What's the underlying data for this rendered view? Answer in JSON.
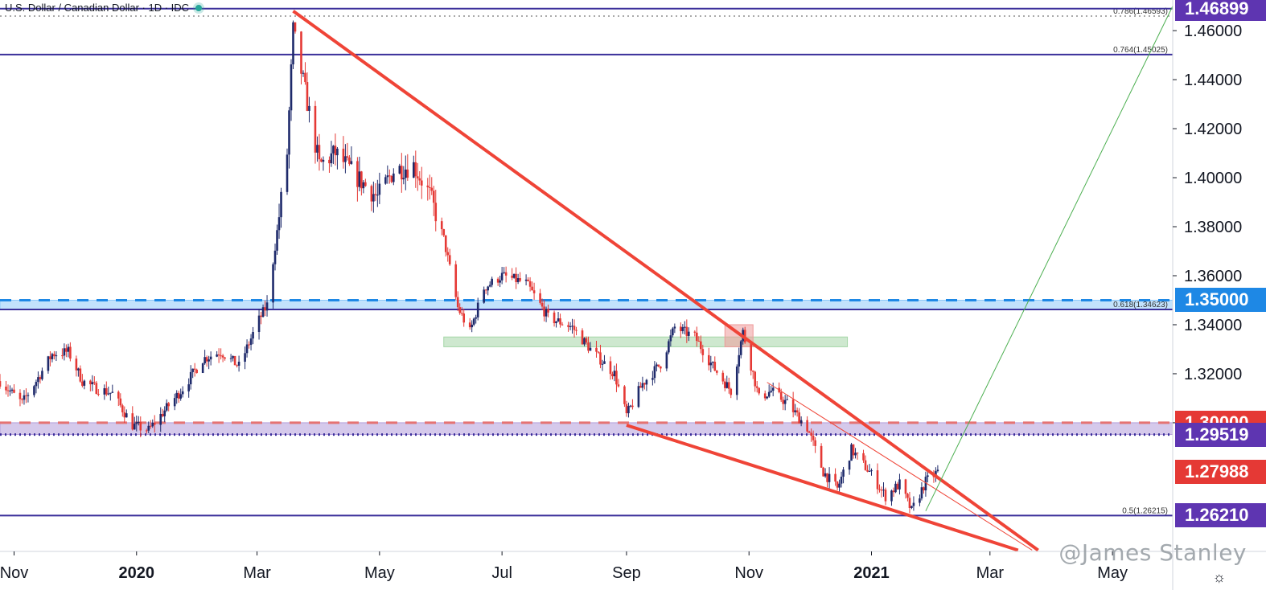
{
  "header": {
    "symbol_label": "U.S. Dollar / Canadian Dollar · 1D · IDC",
    "status_icon": "live-status-dot"
  },
  "watermark": "@James Stanley",
  "settings_icon": "gear-icon",
  "colors": {
    "up": "#1e2a6b",
    "down": "#e53935",
    "trendline": "#ef4437",
    "fib_line": "#3a2f9a",
    "zone_blue": "#90caf9",
    "zone_purple": "#b39ddb",
    "zone_green": "#a5d6a7",
    "projection": "#4caf50"
  },
  "price_tags": [
    {
      "label": "1.46899",
      "value": 1.46899,
      "color": "#5e35b1"
    },
    {
      "label": "1.35000",
      "value": 1.35,
      "color": "#1e88e5"
    },
    {
      "label": "1.30000",
      "value": 1.3,
      "color": "#e53935"
    },
    {
      "label": "1.29519",
      "value": 1.29519,
      "color": "#5e35b1"
    },
    {
      "label": "1.27988",
      "value": 1.27988,
      "color": "#e53935"
    },
    {
      "label": "1.26210",
      "value": 1.2621,
      "color": "#5e35b1"
    }
  ],
  "chart_data": {
    "type": "candlestick",
    "title": "U.S. Dollar / Canadian Dollar · 1D · IDC",
    "ylim": [
      1.2475,
      1.4725
    ],
    "y_ticks": [
      "1.46000",
      "1.44000",
      "1.42000",
      "1.40000",
      "1.38000",
      "1.36000",
      "1.34000",
      "1.32000",
      "1.30000"
    ],
    "x_range": [
      "2019-10-25",
      "2021-05-31"
    ],
    "x_ticks": [
      {
        "label": "Nov",
        "date": "2019-11-01",
        "bold": false
      },
      {
        "label": "2020",
        "date": "2020-01-01",
        "bold": true
      },
      {
        "label": "Mar",
        "date": "2020-03-01",
        "bold": false
      },
      {
        "label": "May",
        "date": "2020-05-01",
        "bold": false
      },
      {
        "label": "Jul",
        "date": "2020-07-01",
        "bold": false
      },
      {
        "label": "Sep",
        "date": "2020-09-01",
        "bold": false
      },
      {
        "label": "Nov",
        "date": "2020-11-01",
        "bold": false
      },
      {
        "label": "2021",
        "date": "2021-01-01",
        "bold": true
      },
      {
        "label": "Mar",
        "date": "2021-03-01",
        "bold": false
      },
      {
        "label": "May",
        "date": "2021-05-01",
        "bold": false
      }
    ],
    "series_closes": [
      {
        "date": "2019-10-25",
        "close": 1.317
      },
      {
        "date": "2019-11-05",
        "close": 1.308
      },
      {
        "date": "2019-11-12",
        "close": 1.317
      },
      {
        "date": "2019-11-20",
        "close": 1.328
      },
      {
        "date": "2019-11-28",
        "close": 1.329
      },
      {
        "date": "2019-12-05",
        "close": 1.317
      },
      {
        "date": "2019-12-12",
        "close": 1.314
      },
      {
        "date": "2019-12-20",
        "close": 1.312
      },
      {
        "date": "2019-12-30",
        "close": 1.299
      },
      {
        "date": "2020-01-07",
        "close": 1.297
      },
      {
        "date": "2020-01-15",
        "close": 1.305
      },
      {
        "date": "2020-01-24",
        "close": 1.314
      },
      {
        "date": "2020-02-03",
        "close": 1.326
      },
      {
        "date": "2020-02-12",
        "close": 1.329
      },
      {
        "date": "2020-02-21",
        "close": 1.323
      },
      {
        "date": "2020-03-02",
        "close": 1.342
      },
      {
        "date": "2020-03-06",
        "close": 1.348
      },
      {
        "date": "2020-03-11",
        "close": 1.378
      },
      {
        "date": "2020-03-16",
        "close": 1.41
      },
      {
        "date": "2020-03-19",
        "close": 1.46
      },
      {
        "date": "2020-03-25",
        "close": 1.435
      },
      {
        "date": "2020-04-01",
        "close": 1.405
      },
      {
        "date": "2020-04-09",
        "close": 1.41
      },
      {
        "date": "2020-04-20",
        "close": 1.4
      },
      {
        "date": "2020-04-30",
        "close": 1.392
      },
      {
        "date": "2020-05-08",
        "close": 1.403
      },
      {
        "date": "2020-05-18",
        "close": 1.405
      },
      {
        "date": "2020-05-26",
        "close": 1.393
      },
      {
        "date": "2020-06-02",
        "close": 1.375
      },
      {
        "date": "2020-06-09",
        "close": 1.347
      },
      {
        "date": "2020-06-15",
        "close": 1.337
      },
      {
        "date": "2020-06-22",
        "close": 1.355
      },
      {
        "date": "2020-07-01",
        "close": 1.36
      },
      {
        "date": "2020-07-13",
        "close": 1.357
      },
      {
        "date": "2020-07-24",
        "close": 1.343
      },
      {
        "date": "2020-08-05",
        "close": 1.339
      },
      {
        "date": "2020-08-14",
        "close": 1.33
      },
      {
        "date": "2020-08-26",
        "close": 1.32
      },
      {
        "date": "2020-09-01",
        "close": 1.303
      },
      {
        "date": "2020-09-09",
        "close": 1.316
      },
      {
        "date": "2020-09-18",
        "close": 1.324
      },
      {
        "date": "2020-09-25",
        "close": 1.339
      },
      {
        "date": "2020-10-05",
        "close": 1.335
      },
      {
        "date": "2020-10-14",
        "close": 1.323
      },
      {
        "date": "2020-10-23",
        "close": 1.313
      },
      {
        "date": "2020-10-29",
        "close": 1.337
      },
      {
        "date": "2020-11-06",
        "close": 1.31
      },
      {
        "date": "2020-11-12",
        "close": 1.313
      },
      {
        "date": "2020-11-20",
        "close": 1.308
      },
      {
        "date": "2020-11-30",
        "close": 1.298
      },
      {
        "date": "2020-12-08",
        "close": 1.28
      },
      {
        "date": "2020-12-15",
        "close": 1.273
      },
      {
        "date": "2020-12-22",
        "close": 1.289
      },
      {
        "date": "2020-12-31",
        "close": 1.28
      },
      {
        "date": "2021-01-08",
        "close": 1.27
      },
      {
        "date": "2021-01-15",
        "close": 1.275
      },
      {
        "date": "2021-01-21",
        "close": 1.264
      },
      {
        "date": "2021-01-28",
        "close": 1.276
      },
      {
        "date": "2021-02-03",
        "close": 1.2799
      }
    ],
    "horizontal_levels": [
      {
        "label": "0.786(1.46593)",
        "value": 1.46593,
        "style": "dotted"
      },
      {
        "label": "",
        "value": 1.46899,
        "style": "solid"
      },
      {
        "label": "0.764(1.45025)",
        "value": 1.45025,
        "style": "solid"
      },
      {
        "label": "0.618(1.34623)",
        "value": 1.34623,
        "style": "solid"
      },
      {
        "label": "",
        "value": 1.35,
        "style": "dashed"
      },
      {
        "label": "",
        "value": 1.3,
        "style": "dashed"
      },
      {
        "label": "",
        "value": 1.29519,
        "style": "dotted"
      },
      {
        "label": "0.5(1.26215)",
        "value": 1.26215,
        "style": "solid"
      }
    ],
    "zones": [
      {
        "name": "",
        "from": "2019-10-25",
        "to": "2021-05-31",
        "low": 1.3462,
        "high": 1.35,
        "color": "#90caf9"
      },
      {
        "name": "",
        "from": "2019-10-25",
        "to": "2021-05-31",
        "low": 1.2952,
        "high": 1.3,
        "color": "#b39ddb"
      },
      {
        "name": "",
        "from": "2020-06-02",
        "to": "2020-12-20",
        "low": 1.331,
        "high": 1.335,
        "color": "#a5d6a7"
      },
      {
        "name": "",
        "from": "2020-10-20",
        "to": "2020-11-03",
        "low": 1.331,
        "high": 1.34,
        "color": "#ef9a9a"
      }
    ],
    "trendlines": [
      {
        "from": {
          "date": "2020-03-19",
          "value": 1.468
        },
        "to": {
          "date": "2021-03-25",
          "value": 1.248
        },
        "width": 4
      },
      {
        "from": {
          "date": "2020-09-01",
          "value": 1.299
        },
        "to": {
          "date": "2021-03-15",
          "value": 1.248
        },
        "width": 4
      },
      {
        "from": {
          "date": "2020-11-10",
          "value": 1.3165
        },
        "to": {
          "date": "2021-03-22",
          "value": 1.248
        },
        "width": 1
      }
    ],
    "projection": {
      "from": {
        "date": "2021-01-28",
        "value": 1.264
      },
      "to": {
        "date": "2021-05-31",
        "value": 1.47
      }
    },
    "current_price": 1.27988,
    "grid": false,
    "legend": "none"
  }
}
